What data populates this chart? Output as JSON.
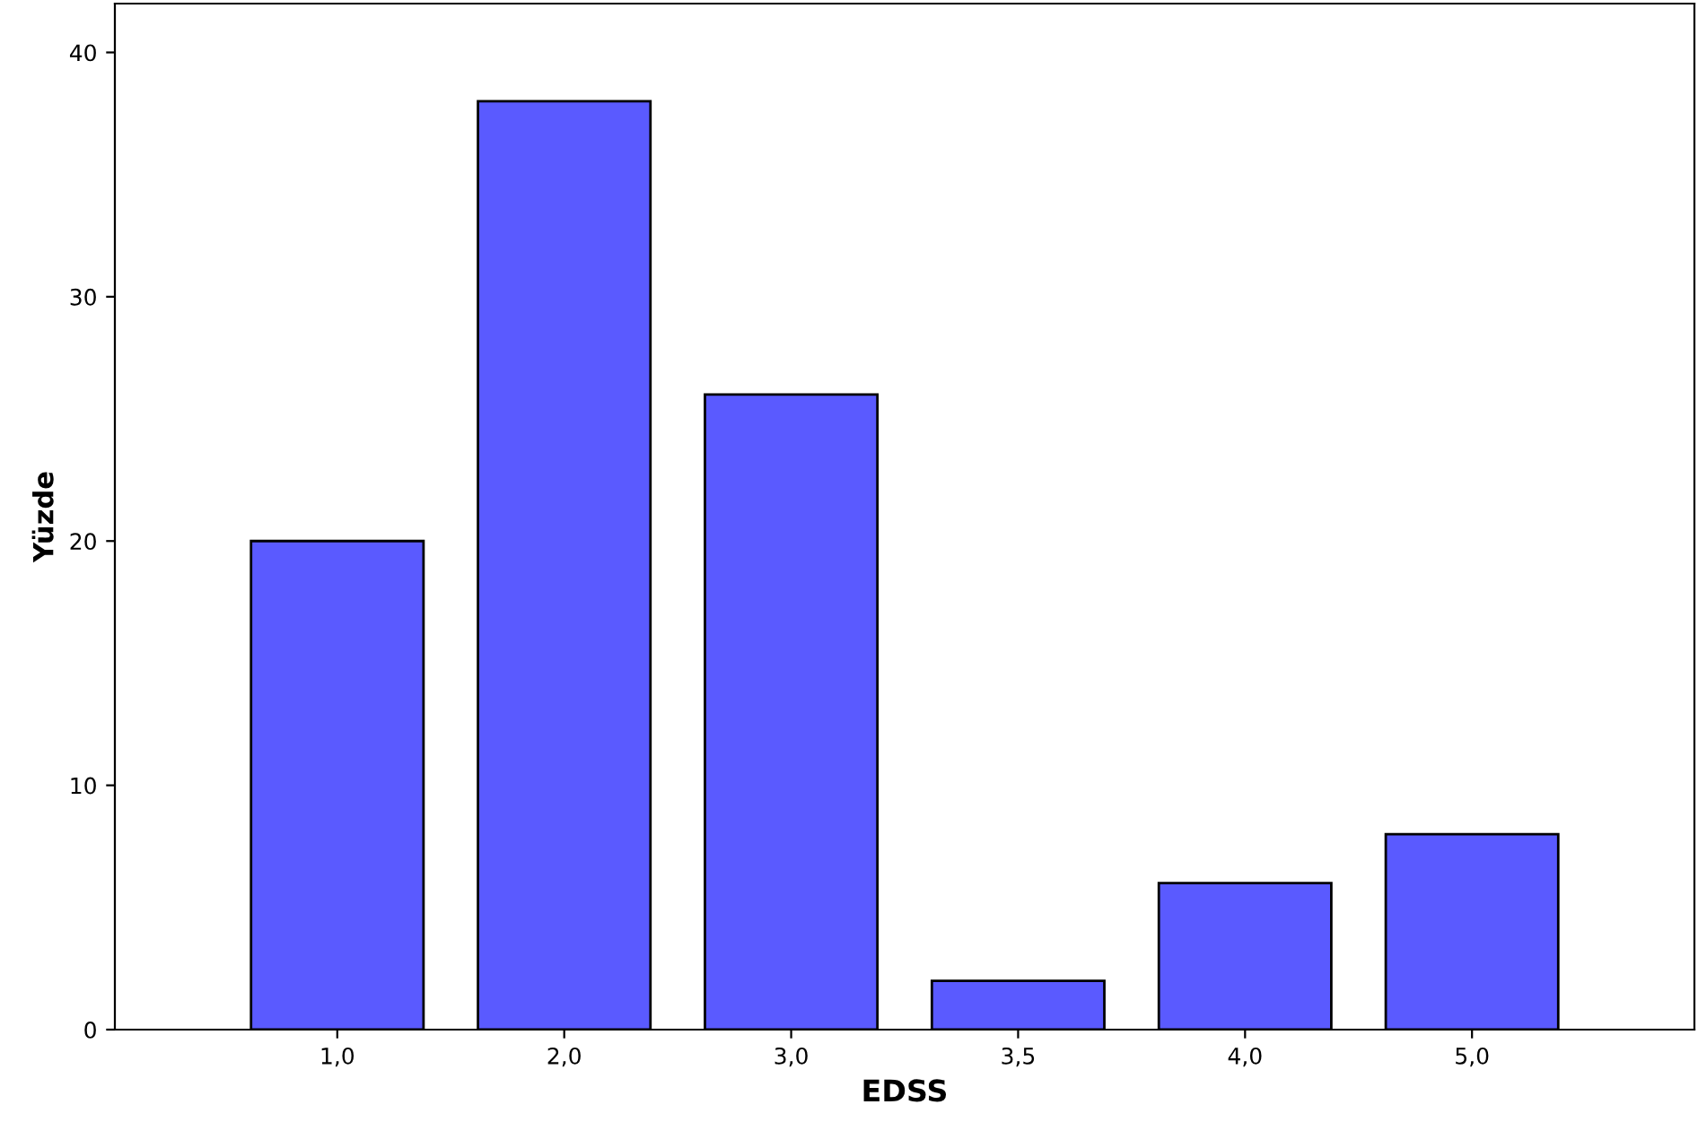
{
  "chart_data": {
    "type": "bar",
    "xlabel": "EDSS",
    "ylabel": "Yüzde",
    "categories": [
      "1,0",
      "2,0",
      "3,0",
      "3,5",
      "4,0",
      "5,0"
    ],
    "values": [
      20,
      38,
      26,
      2,
      6,
      8
    ],
    "color": "#5a5aff",
    "ylim": [
      0,
      42
    ],
    "yticks": [
      0,
      10,
      20,
      30,
      40
    ],
    "grid": false
  }
}
